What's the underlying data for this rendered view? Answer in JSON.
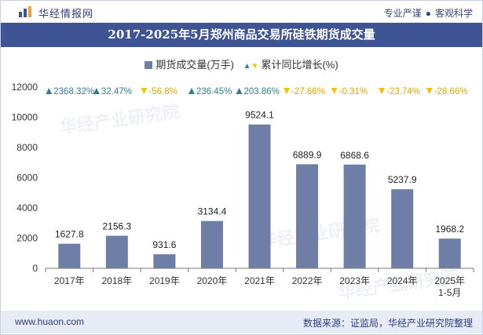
{
  "header": {
    "brand": "华经情报网",
    "tagline_left": "专业严谨",
    "tagline_right": "客观科学"
  },
  "chart_data": {
    "type": "bar",
    "title": "2017-2025年5月郑州商品交易所硅铁期货成交量",
    "categories": [
      "2017年",
      "2018年",
      "2019年",
      "2020年",
      "2021年",
      "2022年",
      "2023年",
      "2024年",
      "2025年\n1-5月"
    ],
    "series": [
      {
        "name": "期货成交量(万手)",
        "values": [
          1627.8,
          2156.3,
          931.6,
          3134.4,
          9524.1,
          6889.9,
          6868.6,
          5237.9,
          1968.2
        ],
        "labels": [
          "1627.8",
          "2156.3",
          "931.6",
          "3134.4",
          "9524.1",
          "6889.9",
          "6868.6",
          "5237.9",
          "1968.2"
        ]
      },
      {
        "name": "累计同比增长(%)",
        "values": [
          2368.32,
          32.47,
          -56.8,
          236.45,
          203.86,
          -27.66,
          -0.31,
          -23.74,
          -28.66
        ],
        "labels": [
          "2368.32%",
          "32.47%",
          "-56.8%",
          "236.45%",
          "203.86%",
          "-27.66%",
          "-0.31%",
          "-23.74%",
          "-28.66%"
        ]
      }
    ],
    "yticks": [
      "0",
      "2000",
      "4000",
      "6000",
      "8000",
      "10000",
      "12000"
    ],
    "ylim": [
      0,
      12000
    ],
    "legend": "top-center",
    "colors": {
      "bar": "#6e7ea7",
      "up": "#2f7f92",
      "down": "#f2c200",
      "axis": "#777777"
    }
  },
  "footer": {
    "site": "www.huaon.com",
    "source": "数据来源：证监局，华经产业研究院整理"
  }
}
